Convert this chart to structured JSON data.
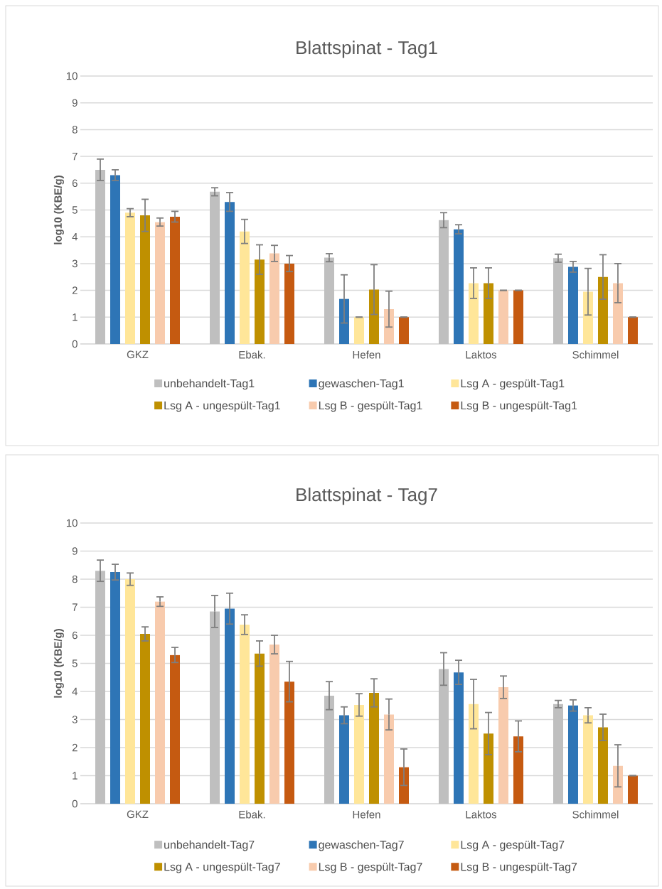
{
  "chart_data": [
    {
      "type": "bar",
      "title": "Blattspinat - Tag1",
      "ylabel": "log10 (KBE/g)",
      "categories": [
        "GKZ",
        "Ebak.",
        "Hefen",
        "Laktos",
        "Schimmel"
      ],
      "ylim": [
        0,
        10
      ],
      "yticks": [
        0,
        1,
        2,
        3,
        4,
        5,
        6,
        7,
        8,
        9,
        10
      ],
      "grid": "y",
      "legend": "bottom",
      "series": [
        {
          "name": "unbehandelt-Tag1",
          "color": "#bfbfbf",
          "values": [
            6.5,
            5.68,
            3.22,
            4.62,
            3.2
          ],
          "errors": [
            0.4,
            0.15,
            0.15,
            0.28,
            0.15
          ]
        },
        {
          "name": "gewaschen-Tag1",
          "color": "#2e75b6",
          "values": [
            6.3,
            5.3,
            1.68,
            4.28,
            2.88
          ],
          "errors": [
            0.2,
            0.35,
            0.9,
            0.17,
            0.2
          ]
        },
        {
          "name": "Lsg A - gespült-Tag1",
          "color": "#ffe699",
          "values": [
            4.9,
            4.2,
            1.0,
            2.27,
            1.95
          ],
          "errors": [
            0.15,
            0.45,
            0,
            0.57,
            0.87
          ]
        },
        {
          "name": "Lsg A - ungespült-Tag1",
          "color": "#bf9000",
          "values": [
            4.8,
            3.15,
            2.03,
            2.27,
            2.5
          ],
          "errors": [
            0.6,
            0.55,
            0.93,
            0.57,
            0.83
          ]
        },
        {
          "name": "Lsg B - gespült-Tag1",
          "color": "#f8cbad",
          "values": [
            4.55,
            3.38,
            1.3,
            2.0,
            2.27
          ],
          "errors": [
            0.15,
            0.3,
            0.67,
            0,
            0.73
          ]
        },
        {
          "name": "Lsg B - ungespült-Tag1",
          "color": "#c55a11",
          "values": [
            4.75,
            3.0,
            1.0,
            2.0,
            1.0
          ],
          "errors": [
            0.2,
            0.3,
            0,
            0,
            0
          ]
        }
      ]
    },
    {
      "type": "bar",
      "title": "Blattspinat - Tag7",
      "ylabel": "log10 (KBE/g)",
      "categories": [
        "GKZ",
        "Ebak.",
        "Hefen",
        "Laktos",
        "Schimmel"
      ],
      "ylim": [
        0,
        10
      ],
      "yticks": [
        0,
        1,
        2,
        3,
        4,
        5,
        6,
        7,
        8,
        9,
        10
      ],
      "grid": "y",
      "legend": "bottom",
      "series": [
        {
          "name": "unbehandelt-Tag7",
          "color": "#bfbfbf",
          "values": [
            8.3,
            6.85,
            3.85,
            4.8,
            3.55
          ],
          "errors": [
            0.38,
            0.57,
            0.5,
            0.58,
            0.13
          ]
        },
        {
          "name": "gewaschen-Tag7",
          "color": "#2e75b6",
          "values": [
            8.25,
            6.95,
            3.15,
            4.68,
            3.5
          ],
          "errors": [
            0.28,
            0.55,
            0.3,
            0.43,
            0.2
          ]
        },
        {
          "name": "Lsg A - gespült-Tag7",
          "color": "#ffe699",
          "values": [
            8.0,
            6.38,
            3.52,
            3.55,
            3.15
          ],
          "errors": [
            0.22,
            0.35,
            0.4,
            0.88,
            0.27
          ]
        },
        {
          "name": "Lsg A - ungespült-Tag7",
          "color": "#bf9000",
          "values": [
            6.05,
            5.35,
            3.95,
            2.5,
            2.72
          ],
          "errors": [
            0.25,
            0.45,
            0.5,
            0.75,
            0.47
          ]
        },
        {
          "name": "Lsg B - gespült-Tag7",
          "color": "#f8cbad",
          "values": [
            7.2,
            5.67,
            3.18,
            4.15,
            1.35
          ],
          "errors": [
            0.17,
            0.33,
            0.55,
            0.4,
            0.75
          ]
        },
        {
          "name": "Lsg B - ungespült-Tag7",
          "color": "#c55a11",
          "values": [
            5.3,
            4.35,
            1.3,
            2.4,
            1.0
          ],
          "errors": [
            0.27,
            0.72,
            0.65,
            0.55,
            0
          ]
        }
      ]
    }
  ]
}
